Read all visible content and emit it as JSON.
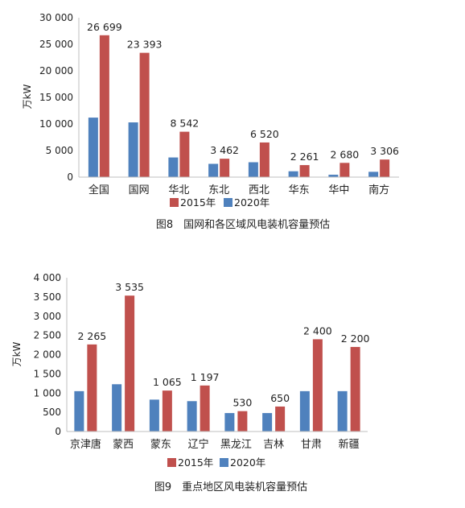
{
  "colors": {
    "series_2015": "#c0504d",
    "series_2020": "#4f81bd"
  },
  "chart_data": [
    {
      "type": "bar",
      "caption": "图8　国网和各区域风电装机容量预估",
      "ylabel": "万kW",
      "ylim": [
        0,
        30000
      ],
      "yticks": [
        0,
        5000,
        10000,
        15000,
        20000,
        25000,
        30000
      ],
      "ytick_labels": [
        "0",
        "5 000",
        "10 000",
        "15 000",
        "20 000",
        "25 000",
        "30 000"
      ],
      "grid": false,
      "legend_position": "bottom",
      "categories": [
        "全国",
        "国网",
        "华北",
        "东北",
        "西北",
        "华东",
        "华中",
        "南方"
      ],
      "series": [
        {
          "name": "2020年",
          "key": "series_2020",
          "values": [
            11200,
            10300,
            3700,
            2500,
            2800,
            1100,
            450,
            1000
          ]
        },
        {
          "name": "2015年",
          "key": "series_2015",
          "values": [
            26699,
            23393,
            8542,
            3462,
            6520,
            2261,
            2680,
            3306
          ],
          "labels": [
            "26 699",
            "23 393",
            "8 542",
            "3 462",
            "6 520",
            "2 261",
            "2 680",
            "3 306"
          ]
        }
      ]
    },
    {
      "type": "bar",
      "caption": "图9　重点地区风电装机容量预估",
      "ylabel": "万kW",
      "ylim": [
        0,
        4000
      ],
      "yticks": [
        0,
        500,
        1000,
        1500,
        2000,
        2500,
        3000,
        3500,
        4000
      ],
      "ytick_labels": [
        "0",
        "500",
        "1 000",
        "1 500",
        "2 000",
        "2 500",
        "3 000",
        "3 500",
        "4 000"
      ],
      "grid": false,
      "legend_position": "bottom",
      "categories": [
        "京津唐",
        "蒙西",
        "蒙东",
        "辽宁",
        "黑龙江",
        "吉林",
        "甘肃",
        "新疆"
      ],
      "series": [
        {
          "name": "2020年",
          "key": "series_2020",
          "values": [
            1050,
            1230,
            830,
            790,
            480,
            480,
            1050,
            1050
          ]
        },
        {
          "name": "2015年",
          "key": "series_2015",
          "values": [
            2265,
            3535,
            1065,
            1197,
            530,
            650,
            2400,
            2200
          ],
          "labels": [
            "2 265",
            "3 535",
            "1 065",
            "1 197",
            "530",
            "650",
            "2 400",
            "2 200"
          ]
        }
      ]
    }
  ]
}
